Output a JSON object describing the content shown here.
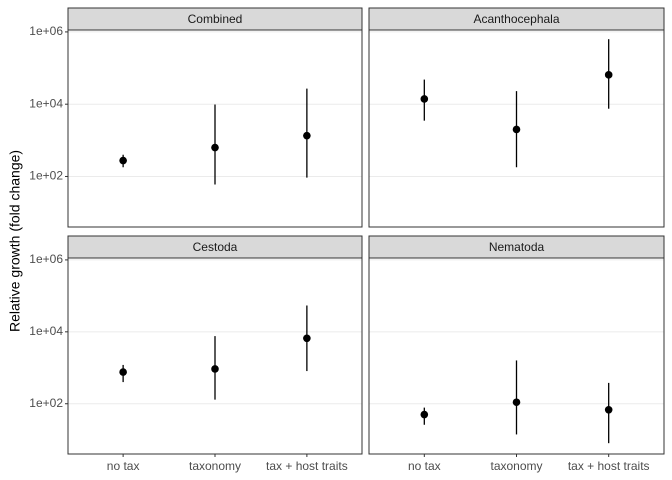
{
  "chart_data": {
    "type": "pointrange",
    "ylabel": "Relative growth (fold change)",
    "categories": [
      "no tax",
      "taxonomy",
      "tax + host traits"
    ],
    "log_y": true,
    "grid": true,
    "color": "#000000",
    "ylim": [
      4,
      1130000
    ],
    "yticks": [
      {
        "value": 100,
        "label": "1e+02"
      },
      {
        "value": 10000,
        "label": "1e+04"
      },
      {
        "value": 1000000,
        "label": "1e+06"
      }
    ],
    "facets": [
      {
        "title": "Combined",
        "values": [
          275,
          630,
          1350
        ],
        "lower": [
          180,
          60,
          93
        ],
        "upper": [
          400,
          9800,
          27000
        ]
      },
      {
        "title": "Acanthocephala",
        "values": [
          14000,
          2000,
          65000
        ],
        "lower": [
          3500,
          180,
          7500
        ],
        "upper": [
          48000,
          23000,
          630000
        ]
      },
      {
        "title": "Cestoda",
        "values": [
          760,
          930,
          6600
        ],
        "lower": [
          400,
          130,
          810
        ],
        "upper": [
          1200,
          7600,
          54000
        ]
      },
      {
        "title": "Nematoda",
        "values": [
          50,
          110,
          68
        ],
        "lower": [
          26,
          14,
          8
        ],
        "upper": [
          78,
          1600,
          380
        ]
      }
    ]
  }
}
